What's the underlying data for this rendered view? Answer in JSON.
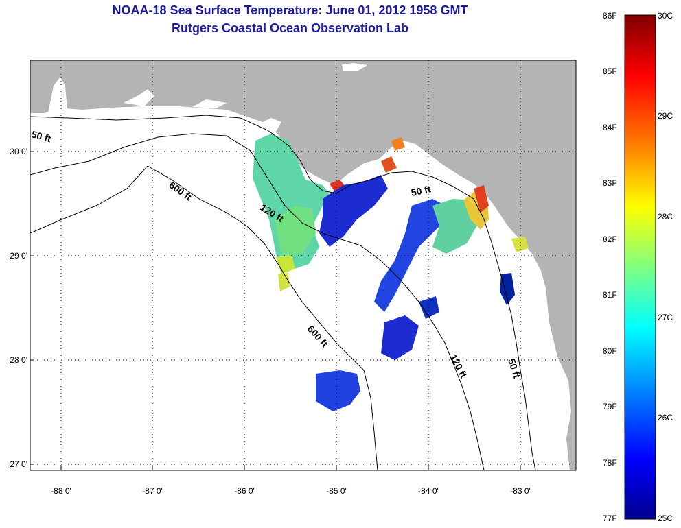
{
  "title": "NOAA-18 Sea Surface Temperature:  June 01, 2012 1958 GMT",
  "subtitle": "Rutgers Coastal Ocean Observation Lab",
  "lon_ticks": [
    "-88 0'",
    "-87 0'",
    "-86 0'",
    "-85 0'",
    "-84 0'",
    "-83 0'"
  ],
  "lat_ticks": [
    "30 0'",
    "29 0'",
    "28 0'",
    "27 0'"
  ],
  "contour_labels": [
    "50 ft",
    "600 ft",
    "120 ft",
    "50 ft",
    "600 ft",
    "120 ft",
    "50 ft"
  ],
  "colorbar": {
    "f_labels": [
      "86F",
      "85F",
      "84F",
      "83F",
      "82F",
      "81F",
      "80F",
      "79F",
      "78F",
      "77F"
    ],
    "c_labels": [
      "30C",
      "29C",
      "28C",
      "27C",
      "26C",
      "25C"
    ],
    "colors": [
      "#800000",
      "#ff0000",
      "#ff8000",
      "#ffff00",
      "#80ff80",
      "#00ffff",
      "#0080ff",
      "#0000ff",
      "#00008f"
    ]
  },
  "land_color": "#b4b4b4"
}
